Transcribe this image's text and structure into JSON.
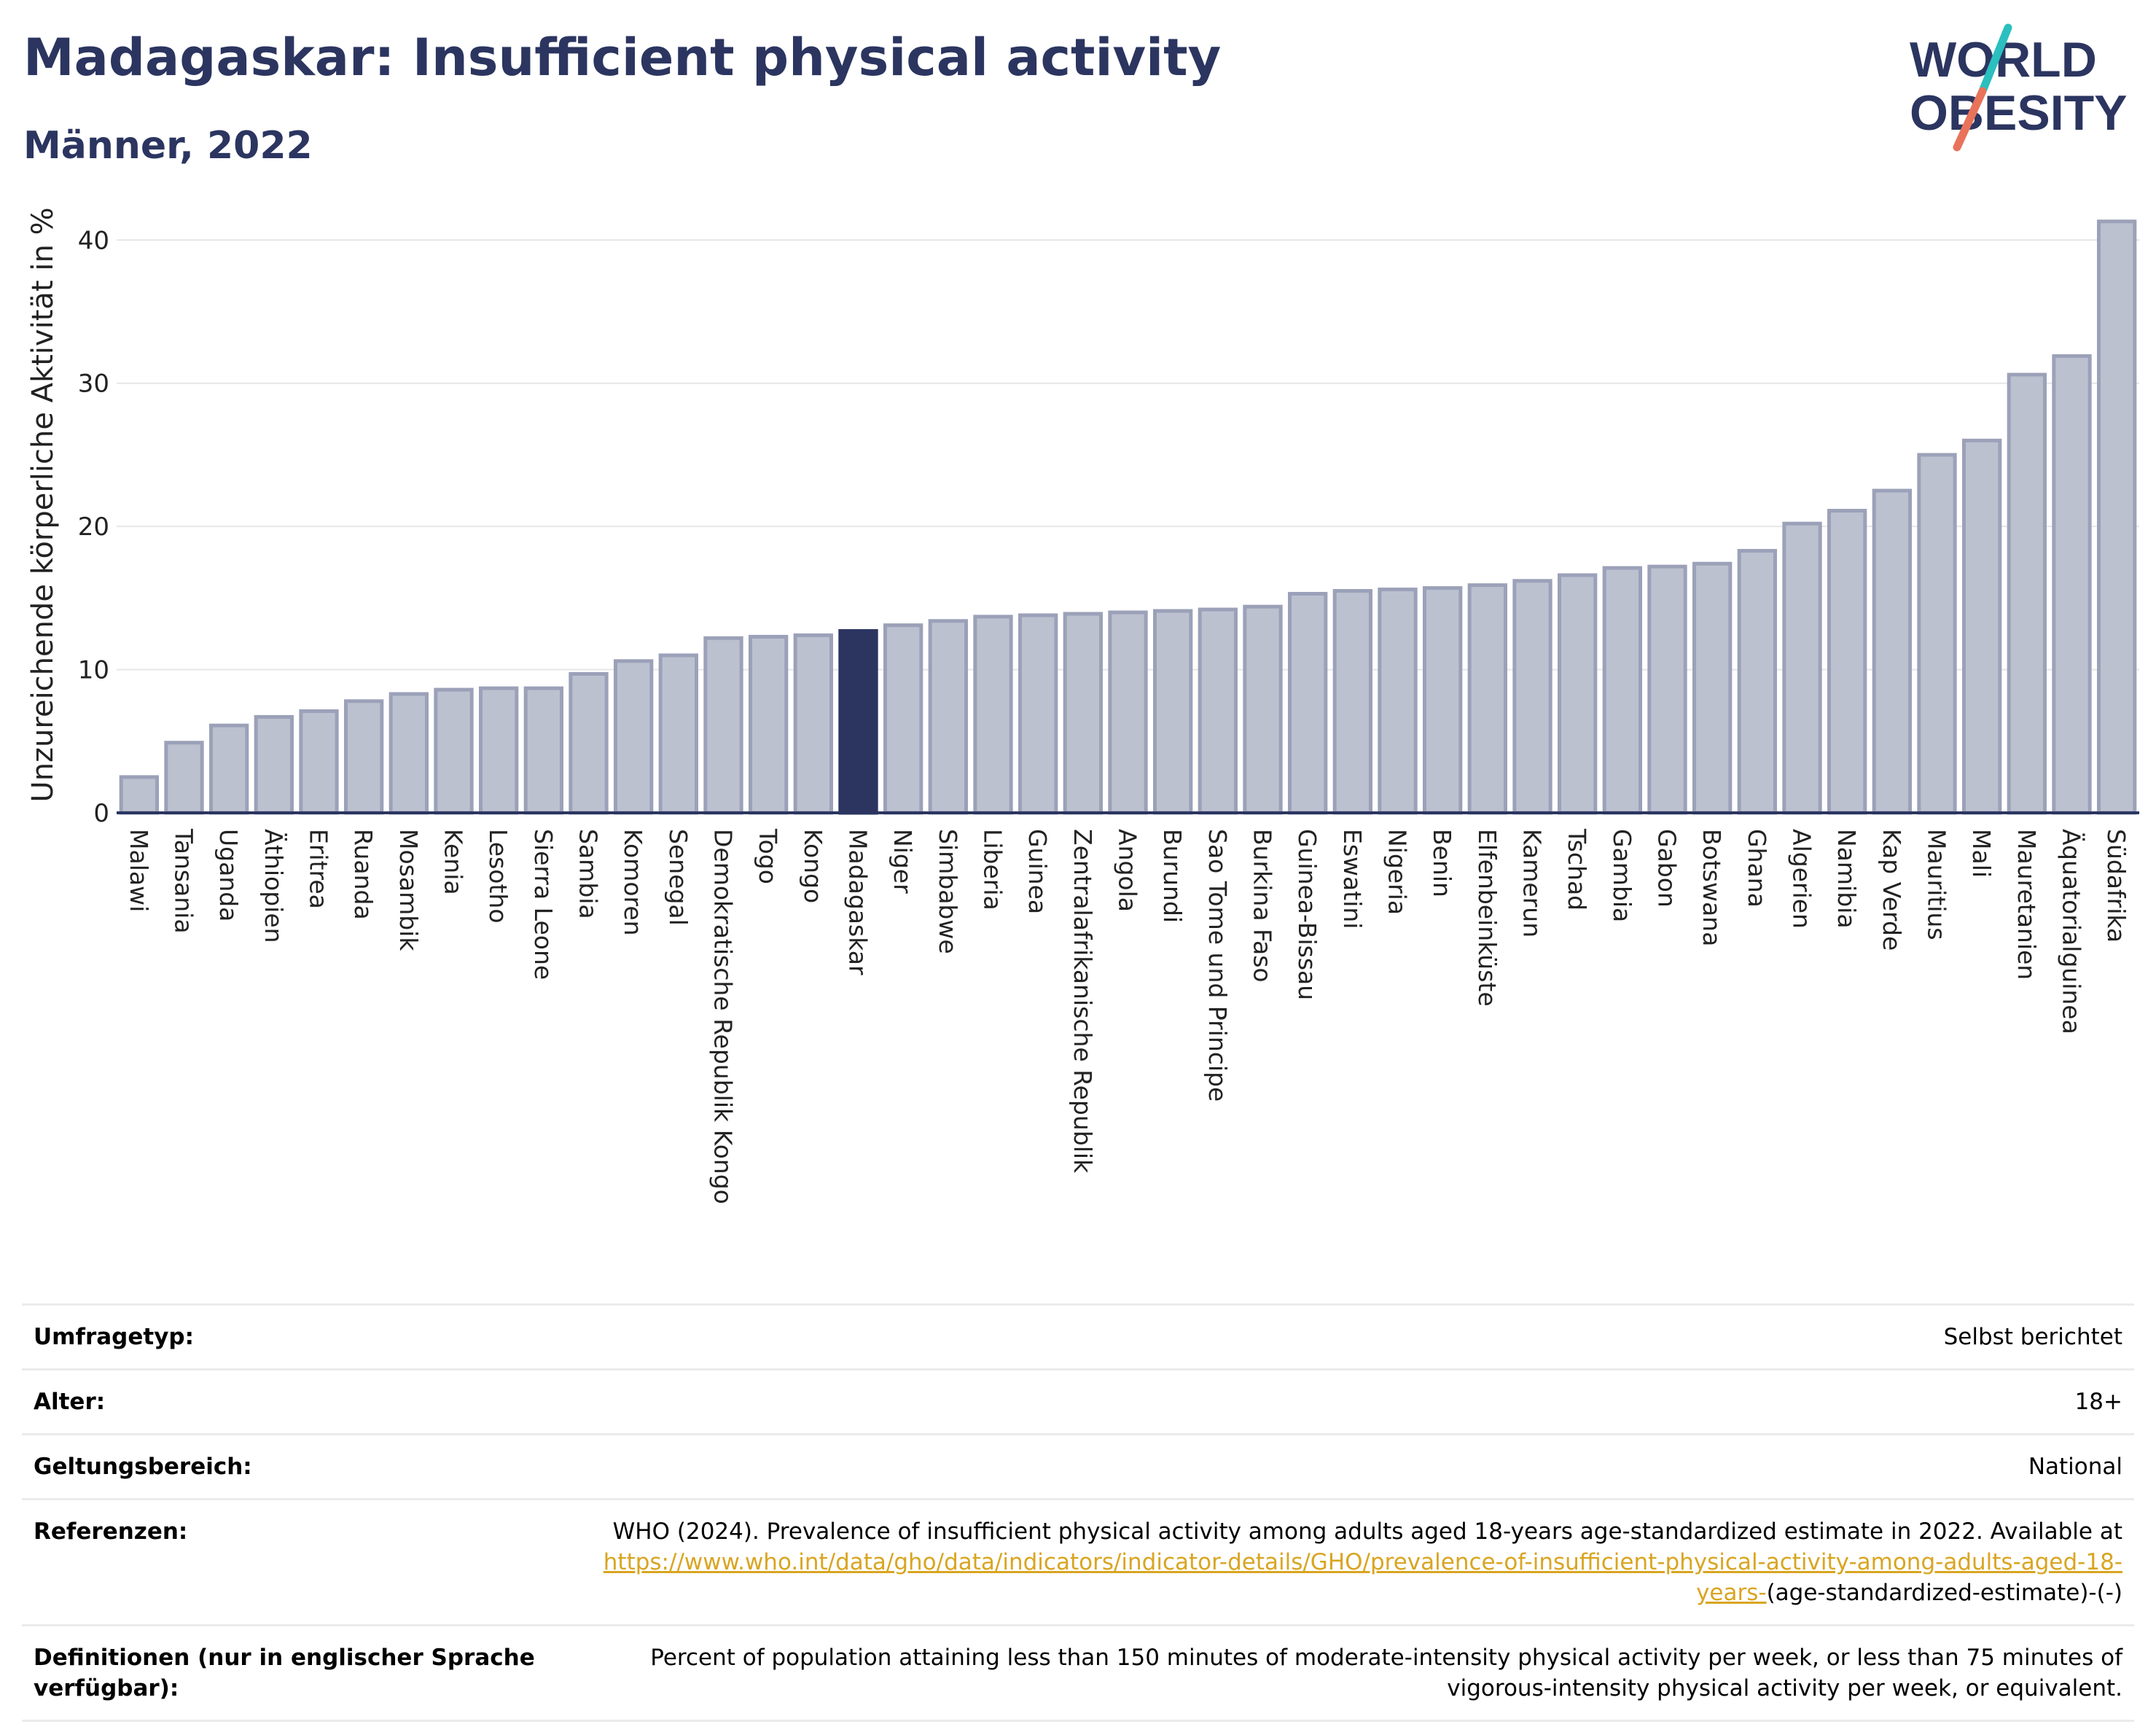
{
  "header": {
    "title": "Madagaskar: Insufficient physical activity",
    "subtitle": "Männer, 2022"
  },
  "logo": {
    "line1": "WORLD",
    "line2": "OBESITY",
    "accent_colors": [
      "#2bbfbf",
      "#e8735a"
    ],
    "text_color": "#2b3560"
  },
  "chart_data": {
    "type": "bar",
    "ylabel": "Unzureichende körperliche Aktivität in %",
    "ylim": [
      0,
      42
    ],
    "yticks": [
      0,
      10,
      20,
      30,
      40
    ],
    "grid": true,
    "highlight": "Madagaskar",
    "colors": {
      "bar": "#bcc1d0",
      "bar_stroke": "#9ba1b8",
      "highlight": "#2b3560"
    },
    "categories": [
      "Malawi",
      "Tansania",
      "Uganda",
      "Äthiopien",
      "Eritrea",
      "Ruanda",
      "Mosambik",
      "Kenia",
      "Lesotho",
      "Sierra Leone",
      "Sambia",
      "Komoren",
      "Senegal",
      "Demokratische Republik Kongo",
      "Togo",
      "Kongo",
      "Madagaskar",
      "Niger",
      "Simbabwe",
      "Liberia",
      "Guinea",
      "Zentralafrikanische Republik",
      "Angola",
      "Burundi",
      "Sao Tome und Principe",
      "Burkina Faso",
      "Guinea-Bissau",
      "Eswatini",
      "Nigeria",
      "Benin",
      "Elfenbeinküste",
      "Kamerun",
      "Tschad",
      "Gambia",
      "Gabon",
      "Botswana",
      "Ghana",
      "Algerien",
      "Namibia",
      "Kap Verde",
      "Mauritius",
      "Mali",
      "Mauretanien",
      "Äquatorialguinea",
      "Südafrika"
    ],
    "values": [
      2.5,
      4.9,
      6.1,
      6.7,
      7.1,
      7.8,
      8.3,
      8.6,
      8.7,
      8.7,
      9.7,
      10.6,
      11.0,
      12.2,
      12.3,
      12.4,
      12.7,
      13.1,
      13.4,
      13.7,
      13.8,
      13.9,
      14.0,
      14.1,
      14.2,
      14.4,
      15.3,
      15.5,
      15.6,
      15.7,
      15.9,
      16.2,
      16.6,
      17.1,
      17.2,
      17.4,
      18.3,
      20.2,
      21.1,
      22.5,
      25.0,
      26.0,
      30.6,
      31.9,
      41.3
    ]
  },
  "info": [
    {
      "label": "Umfragetyp:",
      "value": "Selbst berichtet"
    },
    {
      "label": "Alter:",
      "value": "18+"
    },
    {
      "label": "Geltungsbereich:",
      "value": "National"
    },
    {
      "label": "Referenzen:",
      "value": "WHO (2024). Prevalence of insufficient physical activity among adults aged 18-years age-standardized estimate in 2022. Available at",
      "link": "https://www.who.int/data/gho/data/indicators/indicator-details/GHO/prevalence-of-insufficient-physical-activity-among-adults-aged-18-years-",
      "suffix": "(age-standardized-estimate)-(-)"
    },
    {
      "label": "Definitionen (nur in englischer Sprache verfügbar):",
      "value": "Percent of population attaining less than 150 minutes of moderate-intensity physical activity per week, or less than 75 minutes of vigorous-intensity physical activity per week, or equivalent."
    }
  ]
}
